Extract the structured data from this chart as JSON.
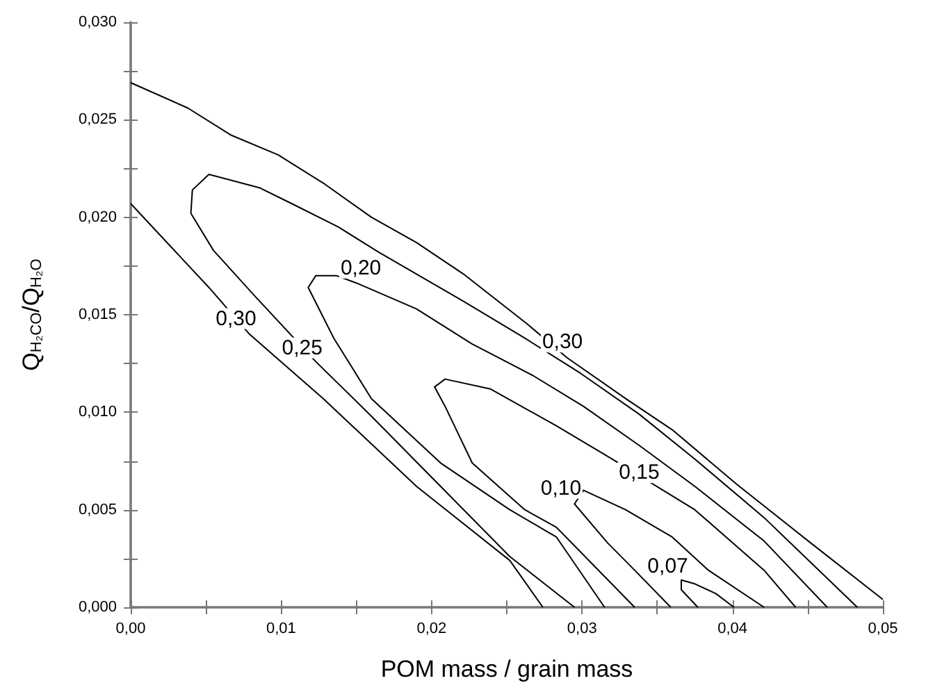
{
  "chart_data": {
    "type": "line",
    "xlabel": "POM mass / grain mass",
    "ylabel": "Q$_{H₂CO}$/Q$_{H₂O}$",
    "xlim": [
      0,
      0.05
    ],
    "ylim": [
      0,
      0.03
    ],
    "xticks": [
      {
        "value": 0,
        "label": "0,00"
      },
      {
        "value": 0.005,
        "label": null
      },
      {
        "value": 0.01,
        "label": "0,01"
      },
      {
        "value": 0.015,
        "label": null
      },
      {
        "value": 0.02,
        "label": "0,02"
      },
      {
        "value": 0.025,
        "label": null
      },
      {
        "value": 0.03,
        "label": "0,03"
      },
      {
        "value": 0.035,
        "label": null
      },
      {
        "value": 0.04,
        "label": "0,04"
      },
      {
        "value": 0.045,
        "label": null
      },
      {
        "value": 0.05,
        "label": "0,05"
      }
    ],
    "yticks": [
      {
        "value": 0,
        "label": "0,000"
      },
      {
        "value": 0.0025,
        "label": null
      },
      {
        "value": 0.005,
        "label": "0,005"
      },
      {
        "value": 0.0075,
        "label": null
      },
      {
        "value": 0.01,
        "label": "0,010"
      },
      {
        "value": 0.0125,
        "label": null
      },
      {
        "value": 0.015,
        "label": "0,015"
      },
      {
        "value": 0.0175,
        "label": null
      },
      {
        "value": 0.02,
        "label": "0,020"
      },
      {
        "value": 0.0225,
        "label": null
      },
      {
        "value": 0.025,
        "label": "0,025"
      },
      {
        "value": 0.0275,
        "label": null
      },
      {
        "value": 0.03,
        "label": "0,030"
      }
    ],
    "grid": false,
    "marker": "none",
    "line_style": "solid",
    "series": [
      {
        "color": "#000000",
        "x": [
          0,
          0.0038,
          0.0067,
          0.0098,
          0.0129,
          0.016,
          0.019,
          0.0221,
          0.0264,
          0.029,
          0.0329,
          0.036,
          0.0403,
          0.0452,
          0.05,
          null,
          0,
          0.0006,
          0.0052,
          0.0079,
          0.0128,
          0.019,
          0.0252,
          0.0274
        ],
        "values": [
          0.0269,
          0.0256,
          0.0242,
          0.0232,
          0.0217,
          0.02,
          0.0187,
          0.0171,
          0.0145,
          0.0128,
          0.0107,
          0.0091,
          0.0063,
          0.0033,
          0.0004,
          null,
          0.0207,
          0.0202,
          0.0164,
          0.014,
          0.0107,
          0.0062,
          0.0024,
          0
        ]
      },
      {
        "color": "#000000",
        "x": [
          0.0295,
          0.0252,
          0.0206,
          0.016,
          0.0123,
          0.0082,
          0.0055,
          0.004,
          0.0041,
          0.0052,
          0.0086,
          0.0107,
          0.0138,
          0.0165,
          0.0221,
          0.0262,
          0.0299,
          0.0338,
          0.0375,
          0.0421,
          0.0483
        ],
        "values": [
          0,
          0.0026,
          0.0062,
          0.0098,
          0.0126,
          0.016,
          0.0183,
          0.0202,
          0.0214,
          0.0222,
          0.0215,
          0.0207,
          0.0195,
          0.0182,
          0.0157,
          0.0138,
          0.012,
          0.0099,
          0.0076,
          0.0046,
          0
        ]
      },
      {
        "color": "#000000",
        "x": [
          0.0315,
          0.0283,
          0.0252,
          0.0206,
          0.016,
          0.0135,
          0.0118,
          0.0123,
          0.0137,
          0.0151,
          0.019,
          0.0227,
          0.0267,
          0.0301,
          0.0338,
          0.0375,
          0.0421,
          0.0463
        ],
        "values": [
          0,
          0.0036,
          0.005,
          0.0074,
          0.0107,
          0.0138,
          0.0164,
          0.017,
          0.017,
          0.0166,
          0.0153,
          0.0135,
          0.0119,
          0.0103,
          0.0083,
          0.0062,
          0.0034,
          0
        ]
      },
      {
        "color": "#000000",
        "x": [
          0.0335,
          0.0283,
          0.0262,
          0.0227,
          0.0209,
          0.0202,
          0.0209,
          0.0239,
          0.0283,
          0.032,
          0.0375,
          0.0421,
          0.0442
        ],
        "values": [
          0,
          0.0041,
          0.005,
          0.0074,
          0.0103,
          0.0113,
          0.0117,
          0.0112,
          0.0093,
          0.0076,
          0.005,
          0.0019,
          0
        ]
      },
      {
        "color": "#000000",
        "x": [
          0.0359,
          0.0335,
          0.0317,
          0.0295,
          0.0301,
          0.0329,
          0.036,
          0.0384,
          0.0421
        ],
        "values": [
          0,
          0.0019,
          0.0033,
          0.0053,
          0.006,
          0.005,
          0.0036,
          0.0019,
          0
        ]
      },
      {
        "color": "#000000",
        "x": [
          0.0377,
          0.0366,
          0.0366,
          0.0375,
          0.0389,
          0.0401
        ],
        "values": [
          0,
          0.0009,
          0.0014,
          0.0012,
          0.0007,
          0
        ]
      }
    ],
    "annotations": [
      {
        "text": "0,30",
        "x": 0.0287,
        "y": 0.0136
      },
      {
        "text": "0,30",
        "x": 0.007,
        "y": 0.0148
      },
      {
        "text": "0,25",
        "x": 0.0114,
        "y": 0.0133
      },
      {
        "text": "0,20",
        "x": 0.0153,
        "y": 0.0174
      },
      {
        "text": "0,15",
        "x": 0.0338,
        "y": 0.0069
      },
      {
        "text": "0,10",
        "x": 0.0286,
        "y": 0.0061
      },
      {
        "text": "0,07",
        "x": 0.0357,
        "y": 0.0021
      }
    ]
  }
}
